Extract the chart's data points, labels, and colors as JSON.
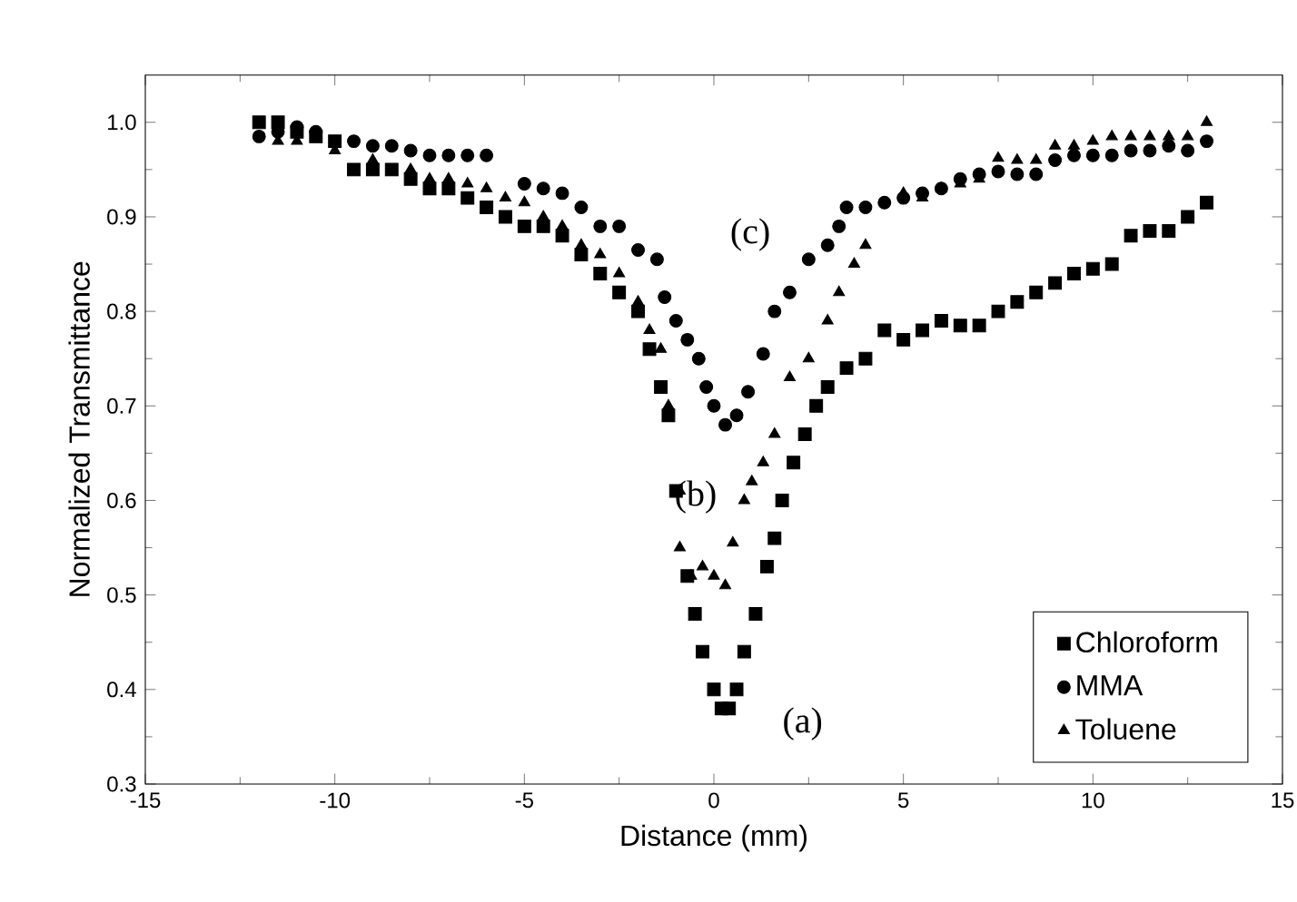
{
  "chart_data": {
    "type": "scatter",
    "xlabel": "Distance (mm)",
    "ylabel": "Normalized Transmittance",
    "xlim": [
      -15,
      15
    ],
    "ylim": [
      0.3,
      1.05
    ],
    "xticks": [
      -15,
      -10,
      -5,
      0,
      5,
      10,
      15
    ],
    "yticks": [
      0.3,
      0.4,
      0.5,
      0.6,
      0.7,
      0.8,
      0.9,
      {
        "value": 1.0,
        "label": "1.0"
      }
    ],
    "legend": "bottom right",
    "grid": false,
    "annotations": [
      "(a)",
      "(b)",
      "(c)"
    ],
    "series": [
      {
        "name": "Chloroform",
        "color": "#000000",
        "marker": "square",
        "x": [
          -12,
          -11.5,
          -11,
          -10.5,
          -10,
          -9.5,
          -9,
          -8.5,
          -8,
          -7.5,
          -7,
          -6.5,
          -6,
          -5.5,
          -5,
          -4.5,
          -4,
          -3.5,
          -3,
          -2.5,
          -2,
          -1.7,
          -1.4,
          -1.2,
          -1,
          -0.7,
          -0.5,
          -0.3,
          0,
          0.2,
          0.4,
          0.6,
          0.8,
          1.1,
          1.4,
          1.6,
          1.8,
          2.1,
          2.4,
          2.7,
          3,
          3.5,
          4,
          4.5,
          5,
          5.5,
          6,
          6.5,
          7,
          7.5,
          8,
          8.5,
          9,
          9.5,
          10,
          10.5,
          11,
          11.5,
          12,
          12.5,
          13
        ],
        "values": [
          1.0,
          1.0,
          0.99,
          0.985,
          0.98,
          0.95,
          0.95,
          0.95,
          0.94,
          0.93,
          0.93,
          0.92,
          0.91,
          0.9,
          0.89,
          0.89,
          0.88,
          0.86,
          0.84,
          0.82,
          0.8,
          0.76,
          0.72,
          0.69,
          0.61,
          0.52,
          0.48,
          0.44,
          0.4,
          0.38,
          0.38,
          0.4,
          0.44,
          0.48,
          0.53,
          0.56,
          0.6,
          0.64,
          0.67,
          0.7,
          0.72,
          0.74,
          0.75,
          0.78,
          0.77,
          0.78,
          0.79,
          0.785,
          0.785,
          0.8,
          0.81,
          0.82,
          0.83,
          0.84,
          0.845,
          0.85,
          0.88,
          0.885,
          0.885,
          0.9,
          0.915
        ]
      },
      {
        "name": "MMA",
        "color": "#000000",
        "marker": "circle",
        "x": [
          -12,
          -11.5,
          -11,
          -10.5,
          -9.5,
          -9,
          -8.5,
          -8,
          -7.5,
          -7,
          -6.5,
          -6,
          -5,
          -4.5,
          -4,
          -3.5,
          -3,
          -2.5,
          -2,
          -1.5,
          -1.3,
          -1,
          -0.7,
          -0.4,
          -0.2,
          0,
          0.3,
          0.6,
          0.9,
          1.3,
          1.6,
          2,
          2.5,
          3,
          3.3,
          3.5,
          4,
          4.5,
          5,
          5.5,
          6,
          6.5,
          7,
          7.5,
          8,
          8.5,
          9,
          9.5,
          10,
          10.5,
          11,
          11.5,
          12,
          12.5,
          13
        ],
        "values": [
          0.985,
          0.99,
          0.995,
          0.99,
          0.98,
          0.975,
          0.975,
          0.97,
          0.965,
          0.965,
          0.965,
          0.965,
          0.935,
          0.93,
          0.925,
          0.91,
          0.89,
          0.89,
          0.865,
          0.855,
          0.815,
          0.79,
          0.77,
          0.75,
          0.72,
          0.7,
          0.68,
          0.69,
          0.715,
          0.755,
          0.8,
          0.82,
          0.855,
          0.87,
          0.89,
          0.91,
          0.91,
          0.915,
          0.92,
          0.925,
          0.93,
          0.94,
          0.945,
          0.948,
          0.945,
          0.945,
          0.96,
          0.965,
          0.965,
          0.965,
          0.97,
          0.97,
          0.975,
          0.97,
          0.98
        ]
      },
      {
        "name": "Toluene",
        "color": "#000000",
        "marker": "triangle",
        "x": [
          -11.5,
          -11,
          -10,
          -9,
          -8,
          -7.5,
          -7,
          -6.5,
          -6,
          -5.5,
          -5,
          -4.5,
          -4,
          -3.5,
          -3,
          -2.5,
          -2,
          -1.7,
          -1.4,
          -1.2,
          -0.9,
          -0.9,
          -0.6,
          -0.3,
          0,
          0.3,
          0.5,
          0.8,
          1,
          1.3,
          1.6,
          2,
          2.5,
          3,
          3.3,
          3.7,
          4,
          5,
          5.5,
          6,
          6.5,
          7,
          7.5,
          8,
          8.5,
          9,
          9.5,
          10,
          10.5,
          11,
          11.5,
          12,
          12.5,
          13
        ],
        "values": [
          0.98,
          0.98,
          0.97,
          0.96,
          0.95,
          0.94,
          0.94,
          0.935,
          0.93,
          0.92,
          0.915,
          0.9,
          0.89,
          0.87,
          0.86,
          0.84,
          0.81,
          0.78,
          0.76,
          0.7,
          0.61,
          0.55,
          0.52,
          0.53,
          0.52,
          0.51,
          0.555,
          0.6,
          0.62,
          0.64,
          0.67,
          0.73,
          0.75,
          0.79,
          0.82,
          0.85,
          0.87,
          0.925,
          0.92,
          0.93,
          0.935,
          0.94,
          0.962,
          0.96,
          0.96,
          0.975,
          0.975,
          0.98,
          0.985,
          0.985,
          0.985,
          0.985,
          0.985,
          1.0
        ]
      }
    ]
  }
}
